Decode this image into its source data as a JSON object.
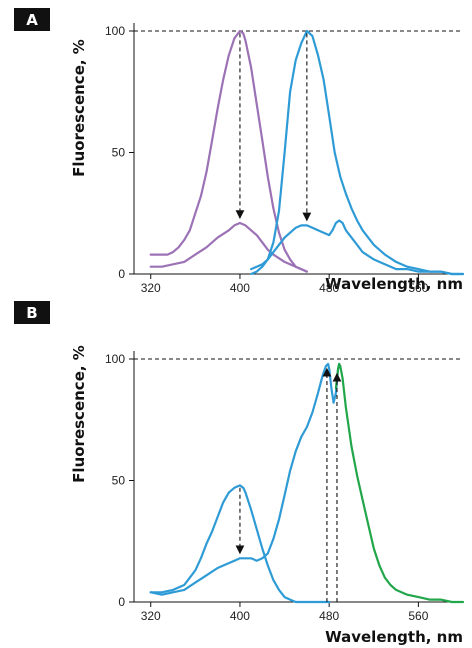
{
  "chart_data": [
    {
      "type": "line",
      "panel_label": "A",
      "xlabel": "Wavelength, nm",
      "ylabel": "Fluorescence, %",
      "xlim": [
        305,
        600
      ],
      "ylim": [
        0,
        100
      ],
      "xticks": [
        320,
        400,
        480,
        560
      ],
      "yticks": [
        0,
        50,
        100
      ],
      "reference_line": 100,
      "series": [
        {
          "color": "#9b72b5",
          "points": [
            [
              320,
              8
            ],
            [
              325,
              8
            ],
            [
              330,
              8
            ],
            [
              335,
              8
            ],
            [
              340,
              9
            ],
            [
              345,
              11
            ],
            [
              350,
              14
            ],
            [
              355,
              18
            ],
            [
              360,
              25
            ],
            [
              365,
              32
            ],
            [
              370,
              42
            ],
            [
              375,
              55
            ],
            [
              380,
              68
            ],
            [
              385,
              80
            ],
            [
              390,
              90
            ],
            [
              395,
              97
            ],
            [
              400,
              100
            ],
            [
              403,
              99
            ],
            [
              405,
              96
            ],
            [
              410,
              85
            ],
            [
              415,
              70
            ],
            [
              420,
              55
            ],
            [
              425,
              40
            ],
            [
              430,
              27
            ],
            [
              435,
              17
            ],
            [
              440,
              10
            ],
            [
              445,
              6
            ],
            [
              450,
              3
            ],
            [
              455,
              2
            ],
            [
              460,
              1
            ]
          ]
        },
        {
          "color": "#9b72b5",
          "points": [
            [
              320,
              3
            ],
            [
              330,
              3
            ],
            [
              340,
              4
            ],
            [
              350,
              5
            ],
            [
              360,
              8
            ],
            [
              370,
              11
            ],
            [
              380,
              15
            ],
            [
              390,
              18
            ],
            [
              395,
              20
            ],
            [
              400,
              21
            ],
            [
              405,
              20
            ],
            [
              410,
              18
            ],
            [
              415,
              16
            ],
            [
              420,
              13
            ],
            [
              425,
              10
            ],
            [
              430,
              8
            ],
            [
              440,
              5
            ],
            [
              450,
              3
            ],
            [
              460,
              1
            ]
          ]
        },
        {
          "color": "#2f9bd6",
          "points": [
            [
              410,
              0
            ],
            [
              415,
              1
            ],
            [
              420,
              3
            ],
            [
              425,
              6
            ],
            [
              430,
              13
            ],
            [
              435,
              26
            ],
            [
              440,
              50
            ],
            [
              445,
              75
            ],
            [
              450,
              88
            ],
            [
              455,
              95
            ],
            [
              460,
              100
            ],
            [
              465,
              98
            ],
            [
              470,
              90
            ],
            [
              475,
              80
            ],
            [
              480,
              65
            ],
            [
              485,
              50
            ],
            [
              490,
              40
            ],
            [
              495,
              33
            ],
            [
              500,
              27
            ],
            [
              505,
              22
            ],
            [
              510,
              18
            ],
            [
              520,
              12
            ],
            [
              530,
              8
            ],
            [
              540,
              5
            ],
            [
              550,
              3
            ],
            [
              560,
              2
            ],
            [
              570,
              1
            ],
            [
              580,
              1
            ],
            [
              590,
              0
            ],
            [
              600,
              0
            ]
          ]
        },
        {
          "color": "#2f9bd6",
          "points": [
            [
              410,
              2
            ],
            [
              415,
              3
            ],
            [
              420,
              4
            ],
            [
              425,
              6
            ],
            [
              430,
              9
            ],
            [
              435,
              12
            ],
            [
              440,
              15
            ],
            [
              445,
              17
            ],
            [
              450,
              19
            ],
            [
              455,
              20
            ],
            [
              460,
              20
            ],
            [
              465,
              19
            ],
            [
              470,
              18
            ],
            [
              475,
              17
            ],
            [
              480,
              16
            ],
            [
              483,
              18
            ],
            [
              486,
              21
            ],
            [
              489,
              22
            ],
            [
              492,
              21
            ],
            [
              495,
              18
            ],
            [
              500,
              15
            ],
            [
              505,
              12
            ],
            [
              510,
              9
            ],
            [
              520,
              6
            ],
            [
              530,
              4
            ],
            [
              540,
              2
            ],
            [
              550,
              2
            ],
            [
              560,
              1
            ],
            [
              570,
              1
            ],
            [
              580,
              1
            ],
            [
              590,
              0
            ],
            [
              600,
              0
            ]
          ]
        }
      ],
      "arrows": [
        {
          "x": 400,
          "from": 99,
          "to": 23
        },
        {
          "x": 460,
          "from": 99,
          "to": 22
        }
      ]
    },
    {
      "type": "line",
      "panel_label": "B",
      "xlabel": "Wavelength, nm",
      "ylabel": "Fluorescence, %",
      "xlim": [
        305,
        600
      ],
      "ylim": [
        0,
        100
      ],
      "xticks": [
        320,
        400,
        480,
        560
      ],
      "yticks": [
        0,
        50,
        100
      ],
      "reference_line": 100,
      "series": [
        {
          "color": "#2f9bd6",
          "points": [
            [
              320,
              4
            ],
            [
              330,
              4
            ],
            [
              340,
              5
            ],
            [
              350,
              7
            ],
            [
              355,
              10
            ],
            [
              360,
              13
            ],
            [
              365,
              18
            ],
            [
              370,
              24
            ],
            [
              375,
              29
            ],
            [
              380,
              35
            ],
            [
              385,
              41
            ],
            [
              390,
              45
            ],
            [
              395,
              47
            ],
            [
              400,
              48
            ],
            [
              403,
              47
            ],
            [
              405,
              45
            ],
            [
              410,
              38
            ],
            [
              415,
              30
            ],
            [
              420,
              22
            ],
            [
              425,
              15
            ],
            [
              430,
              9
            ],
            [
              435,
              5
            ],
            [
              440,
              2
            ],
            [
              445,
              1
            ],
            [
              450,
              0
            ],
            [
              460,
              0
            ],
            [
              470,
              0
            ],
            [
              480,
              0
            ]
          ]
        },
        {
          "color": "#2f9bd6",
          "points": [
            [
              320,
              4
            ],
            [
              330,
              3
            ],
            [
              340,
              4
            ],
            [
              350,
              5
            ],
            [
              360,
              8
            ],
            [
              370,
              11
            ],
            [
              380,
              14
            ],
            [
              390,
              16
            ],
            [
              395,
              17
            ],
            [
              400,
              18
            ],
            [
              410,
              18
            ],
            [
              415,
              17
            ],
            [
              420,
              18
            ],
            [
              425,
              20
            ],
            [
              430,
              26
            ],
            [
              435,
              34
            ],
            [
              440,
              44
            ],
            [
              445,
              54
            ],
            [
              450,
              62
            ],
            [
              455,
              68
            ],
            [
              460,
              72
            ],
            [
              465,
              78
            ],
            [
              470,
              86
            ],
            [
              474,
              93
            ],
            [
              477,
              97
            ],
            [
              479,
              98
            ],
            [
              480,
              96
            ],
            [
              482,
              88
            ],
            [
              484,
              82
            ],
            [
              486,
              86
            ],
            [
              488,
              96
            ],
            [
              489,
              98
            ],
            [
              490,
              97
            ]
          ]
        },
        {
          "color": "#22a64a",
          "points": [
            [
              486,
              88
            ],
            [
              488,
              96
            ],
            [
              489,
              98
            ],
            [
              490,
              97
            ],
            [
              492,
              92
            ],
            [
              495,
              80
            ],
            [
              500,
              64
            ],
            [
              505,
              52
            ],
            [
              510,
              42
            ],
            [
              515,
              32
            ],
            [
              520,
              22
            ],
            [
              525,
              15
            ],
            [
              530,
              10
            ],
            [
              535,
              7
            ],
            [
              540,
              5
            ],
            [
              550,
              3
            ],
            [
              560,
              2
            ],
            [
              570,
              1
            ],
            [
              580,
              1
            ],
            [
              590,
              0
            ],
            [
              600,
              0
            ]
          ]
        }
      ],
      "arrows": [
        {
          "x": 400,
          "from": 47,
          "to": 20
        },
        {
          "x": 478,
          "from": 0,
          "to": 96
        },
        {
          "x": 487,
          "from": 0,
          "to": 94
        }
      ]
    }
  ]
}
